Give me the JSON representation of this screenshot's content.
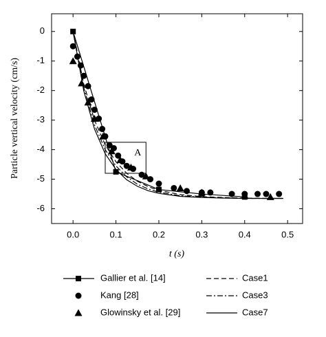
{
  "chart_data": {
    "type": "line",
    "xlabel": "t (s)",
    "ylabel": "Particle vertical velocity (cm/s)",
    "xlim": [
      -0.05,
      0.535
    ],
    "ylim": [
      -6.5,
      0.6
    ],
    "xticks": [
      {
        "value": 0,
        "label": "0.0"
      },
      0.1,
      0.2,
      0.3,
      0.4,
      0.5
    ],
    "yticks": [
      0,
      -1,
      -2,
      -3,
      -4,
      -5,
      -6
    ],
    "annotation": {
      "text": "A",
      "box": [
        0.075,
        0.17,
        -4.8,
        -3.75
      ]
    },
    "series": [
      {
        "name": "Gallier et al. [14]",
        "color": "#000000",
        "linestyle": "solid",
        "marker": "square",
        "x": [
          0,
          0.1,
          0.2,
          0.3,
          0.4
        ],
        "values": [
          0,
          -4.75,
          -5.35,
          -5.5,
          -5.6
        ]
      },
      {
        "name": "Kang [28]",
        "color": "#000000",
        "linestyle": "none",
        "marker": "circle",
        "x": [
          0.0,
          0.01,
          0.018,
          0.025,
          0.035,
          0.043,
          0.05,
          0.06,
          0.068,
          0.075,
          0.085,
          0.095,
          0.105,
          0.115,
          0.125,
          0.14,
          0.16,
          0.18,
          0.2,
          0.235,
          0.265,
          0.3,
          0.32,
          0.37,
          0.4,
          0.43,
          0.45,
          0.48
        ],
        "values": [
          -0.5,
          -0.85,
          -1.15,
          -1.5,
          -1.85,
          -2.3,
          -2.65,
          -2.95,
          -3.3,
          -3.55,
          -3.85,
          -3.95,
          -4.2,
          -4.4,
          -4.55,
          -4.65,
          -4.85,
          -5.0,
          -5.15,
          -5.3,
          -5.4,
          -5.45,
          -5.45,
          -5.5,
          -5.5,
          -5.5,
          -5.5,
          -5.5
        ]
      },
      {
        "name": "Glowinsky et al. [29]",
        "color": "#000000",
        "linestyle": "none",
        "marker": "triangle",
        "x": [
          0.0,
          0.02,
          0.035,
          0.05,
          0.07,
          0.09,
          0.11,
          0.135,
          0.17,
          0.25,
          0.3,
          0.4,
          0.46
        ],
        "values": [
          -1.0,
          -1.75,
          -2.4,
          -2.95,
          -3.55,
          -4.05,
          -4.35,
          -4.6,
          -4.9,
          -5.3,
          -5.45,
          -5.55,
          -5.6
        ]
      },
      {
        "name": "Case1",
        "color": "#000000",
        "linestyle": "dashed",
        "marker": "none",
        "x": [
          0,
          0.025,
          0.05,
          0.075,
          0.1,
          0.125,
          0.15,
          0.175,
          0.2,
          0.25,
          0.3,
          0.35,
          0.4,
          0.45,
          0.49
        ],
        "values": [
          0,
          -1.78,
          -3.0,
          -3.84,
          -4.41,
          -4.8,
          -5.07,
          -5.25,
          -5.38,
          -5.52,
          -5.59,
          -5.62,
          -5.64,
          -5.65,
          -5.65
        ]
      },
      {
        "name": "Case3",
        "color": "#000000",
        "linestyle": "dashdot",
        "marker": "none",
        "x": [
          0,
          0.025,
          0.05,
          0.075,
          0.1,
          0.125,
          0.15,
          0.175,
          0.2,
          0.25,
          0.3,
          0.35,
          0.4,
          0.45,
          0.49
        ],
        "values": [
          0,
          -1.9,
          -3.16,
          -4.0,
          -4.55,
          -4.92,
          -5.17,
          -5.33,
          -5.44,
          -5.56,
          -5.61,
          -5.63,
          -5.65,
          -5.65,
          -5.65
        ]
      },
      {
        "name": "Case7",
        "color": "#000000",
        "linestyle": "solid",
        "marker": "none",
        "x": [
          0,
          0.025,
          0.05,
          0.075,
          0.1,
          0.125,
          0.15,
          0.175,
          0.2,
          0.25,
          0.3,
          0.35,
          0.4,
          0.45,
          0.49
        ],
        "values": [
          0,
          -2.01,
          -3.3,
          -4.14,
          -4.67,
          -5.02,
          -5.24,
          -5.39,
          -5.48,
          -5.58,
          -5.62,
          -5.64,
          -5.65,
          -5.65,
          -5.65
        ]
      }
    ]
  }
}
